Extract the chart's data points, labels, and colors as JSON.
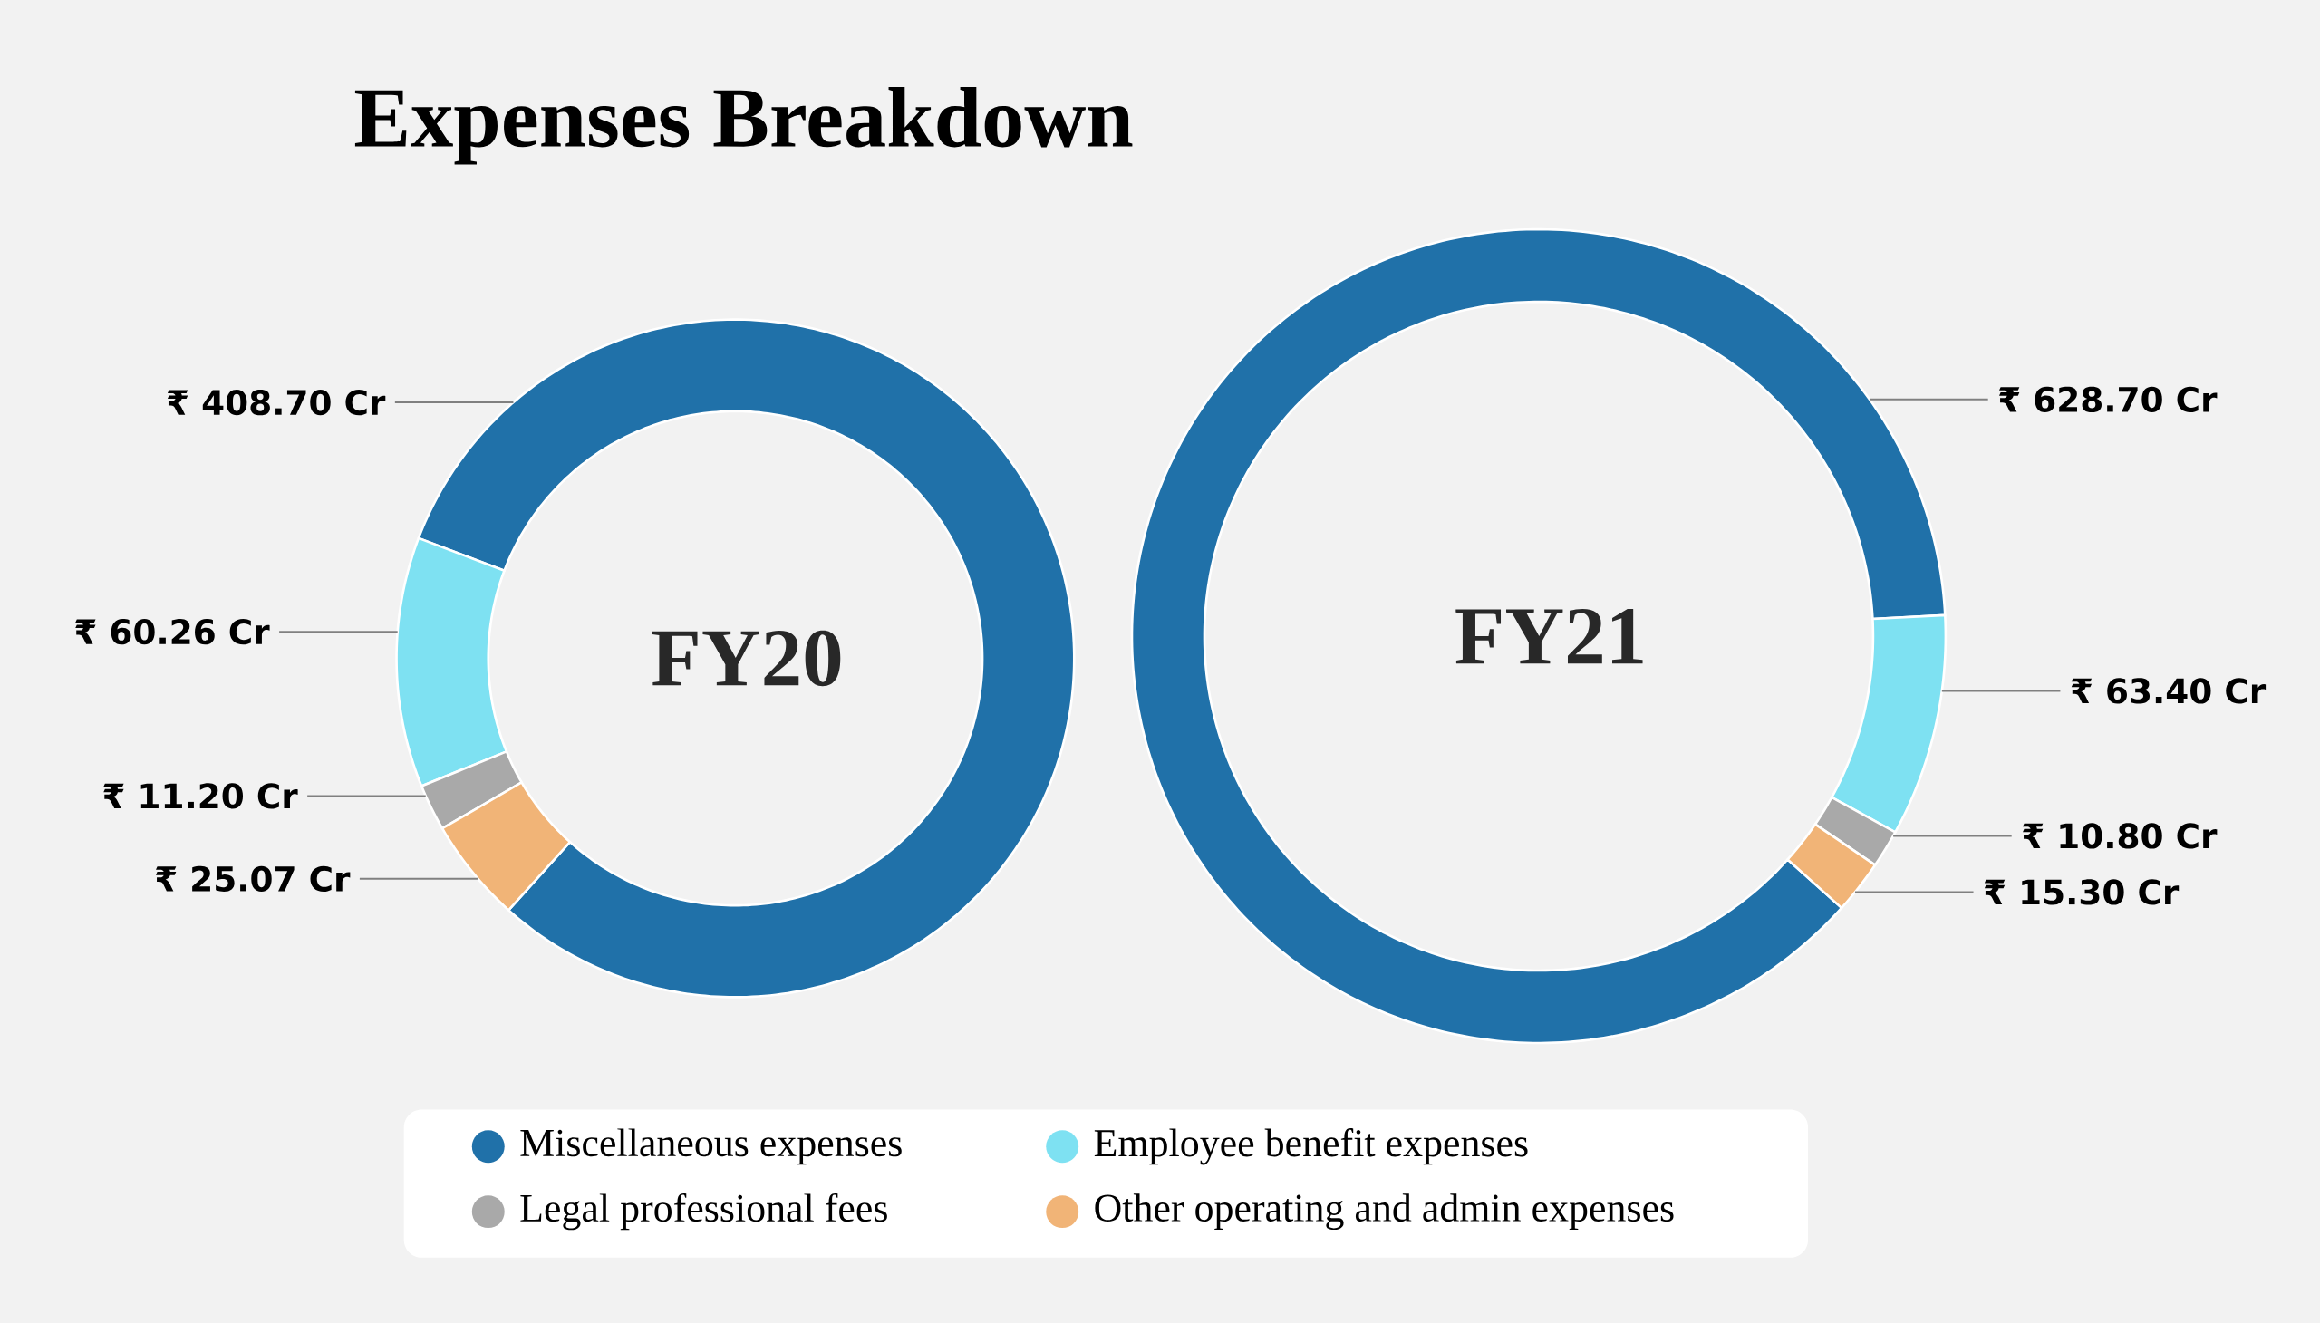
{
  "chart_data": [
    {
      "type": "other",
      "title": "Expenses Breakdown"
    },
    {
      "type": "donut",
      "title": "FY20",
      "categories": [
        "Miscellaneous expenses",
        "Employee benefit expenses",
        "Legal professional fees",
        "Other operating and admin expenses"
      ],
      "values": [
        408.7,
        60.26,
        11.2,
        25.07
      ],
      "colors": [
        "#2071a9",
        "#7ee1f2",
        "#a9a9a9",
        "#f1b477"
      ],
      "value_labels": [
        "₹ 408.70 Cr",
        "₹ 60.26 Cr",
        "₹ 11.20 Cr",
        "₹ 25.07 Cr"
      ],
      "legend": "bottom"
    },
    {
      "type": "donut",
      "title": "FY21",
      "categories": [
        null,
        null,
        null,
        null
      ],
      "values": [
        628.7,
        63.4,
        10.8,
        15.3
      ],
      "colors": [
        "#2071a9",
        "#7ee1f2",
        "#a9a9a9",
        "#f1b477"
      ],
      "value_labels": [
        "₹ 628.70 Cr",
        "₹ 63.40 Cr",
        "₹ 10.80 Cr",
        "₹ 15.30 Cr"
      ]
    }
  ]
}
